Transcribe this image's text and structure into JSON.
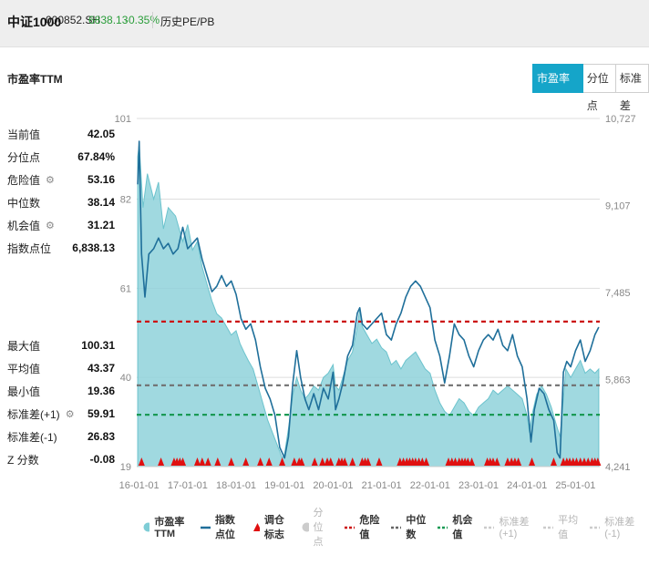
{
  "header": {
    "name": "中证1000",
    "code": "000852.SH",
    "price": "6838.13",
    "change": "-0.35%",
    "tab": "历史PE/PB"
  },
  "chart_title": "市盈率TTM",
  "buttons": [
    "市盈率TTM",
    "分位点",
    "标准差"
  ],
  "stats_top": [
    {
      "label": "当前值",
      "value": "42.05",
      "gear": false
    },
    {
      "label": "分位点",
      "value": "67.84%",
      "gear": false
    },
    {
      "label": "危险值",
      "value": "53.16",
      "gear": true
    },
    {
      "label": "中位数",
      "value": "38.14",
      "gear": false
    },
    {
      "label": "机会值",
      "value": "31.21",
      "gear": true
    },
    {
      "label": "指数点位",
      "value": "6,838.13",
      "gear": false
    }
  ],
  "stats_bottom": [
    {
      "label": "最大值",
      "value": "100.31",
      "gear": false
    },
    {
      "label": "平均值",
      "value": "43.37",
      "gear": false
    },
    {
      "label": "最小值",
      "value": "19.36",
      "gear": false
    },
    {
      "label": "标准差(+1)",
      "value": "59.91",
      "gear": true
    },
    {
      "label": "标准差(-1)",
      "value": "26.83",
      "gear": false
    },
    {
      "label": "Z 分数",
      "value": "-0.08",
      "gear": false
    }
  ],
  "legend": [
    {
      "label": "市盈率TTM",
      "kind": "dot",
      "color": "#7fcdd6",
      "active": true
    },
    {
      "label": "指数点位",
      "kind": "line",
      "color": "#1f6f9a",
      "active": true
    },
    {
      "label": "调仓标志",
      "kind": "triangle",
      "color": "#e01010",
      "active": true
    },
    {
      "label": "分位点",
      "kind": "dot",
      "color": "#cccccc",
      "active": false
    },
    {
      "label": "危险值",
      "kind": "dash",
      "color": "#cc1111",
      "active": true
    },
    {
      "label": "中位数",
      "kind": "dash",
      "color": "#666666",
      "active": true
    },
    {
      "label": "机会值",
      "kind": "dash",
      "color": "#1a9a55",
      "active": true
    },
    {
      "label": "标准差(+1)",
      "kind": "dash",
      "color": "#cccccc",
      "active": false
    },
    {
      "label": "平均值",
      "kind": "dash",
      "color": "#cccccc",
      "active": false
    },
    {
      "label": "标准差(-1)",
      "kind": "dash",
      "color": "#cccccc",
      "active": false
    }
  ],
  "colors": {
    "pe_fill": "#8fd2da",
    "pe_stroke": "#6cc3cd",
    "index_line": "#1f6f9a",
    "danger": "#cc1111",
    "median": "#707070",
    "opportunity": "#1a9a55",
    "marker": "#e01010",
    "accent": "#15a5c9"
  },
  "chart_data": {
    "type": "area",
    "title": "市盈率TTM",
    "x_ticks": [
      "16-01-01",
      "17-01-01",
      "18-01-01",
      "19-01-01",
      "20-01-01",
      "21-01-01",
      "22-01-01",
      "23-01-01",
      "24-01-01",
      "25-01-01"
    ],
    "y_left": {
      "ticks": [
        19,
        40,
        61,
        82,
        101
      ],
      "range": [
        19,
        101
      ]
    },
    "y_right": {
      "ticks": [
        "4,241",
        "5,863",
        "7,485",
        "9,107",
        "10,727"
      ],
      "range": [
        4241,
        10727
      ]
    },
    "reference_lines": [
      {
        "name": "危险值",
        "value": 53.16
      },
      {
        "name": "中位数",
        "value": 38.14
      },
      {
        "name": "机会值",
        "value": 31.21
      }
    ],
    "series": [
      {
        "name": "市盈率TTM",
        "axis": "left",
        "points": [
          [
            2015.97,
            92
          ],
          [
            2016.0,
            95
          ],
          [
            2016.08,
            80
          ],
          [
            2016.17,
            88
          ],
          [
            2016.3,
            82
          ],
          [
            2016.4,
            86
          ],
          [
            2016.5,
            75
          ],
          [
            2016.6,
            80
          ],
          [
            2016.75,
            78
          ],
          [
            2016.9,
            72
          ],
          [
            2017.0,
            76
          ],
          [
            2017.1,
            70
          ],
          [
            2017.2,
            72
          ],
          [
            2017.3,
            66
          ],
          [
            2017.4,
            62
          ],
          [
            2017.5,
            58
          ],
          [
            2017.6,
            55
          ],
          [
            2017.7,
            54
          ],
          [
            2017.8,
            52
          ],
          [
            2017.9,
            50
          ],
          [
            2018.0,
            51
          ],
          [
            2018.08,
            48
          ],
          [
            2018.16,
            46
          ],
          [
            2018.25,
            44
          ],
          [
            2018.35,
            42
          ],
          [
            2018.45,
            38
          ],
          [
            2018.55,
            34
          ],
          [
            2018.65,
            30
          ],
          [
            2018.75,
            27
          ],
          [
            2018.85,
            24
          ],
          [
            2018.95,
            21
          ],
          [
            2019.0,
            22
          ],
          [
            2019.08,
            28
          ],
          [
            2019.17,
            36
          ],
          [
            2019.25,
            40
          ],
          [
            2019.33,
            37
          ],
          [
            2019.42,
            35
          ],
          [
            2019.5,
            36
          ],
          [
            2019.6,
            38
          ],
          [
            2019.7,
            37
          ],
          [
            2019.8,
            40
          ],
          [
            2019.9,
            41
          ],
          [
            2020.0,
            43
          ],
          [
            2020.05,
            38
          ],
          [
            2020.12,
            37
          ],
          [
            2020.2,
            40
          ],
          [
            2020.3,
            44
          ],
          [
            2020.4,
            46
          ],
          [
            2020.5,
            52
          ],
          [
            2020.55,
            56
          ],
          [
            2020.6,
            52
          ],
          [
            2020.7,
            50
          ],
          [
            2020.8,
            48
          ],
          [
            2020.9,
            49
          ],
          [
            2021.0,
            47
          ],
          [
            2021.1,
            46
          ],
          [
            2021.2,
            43
          ],
          [
            2021.3,
            44
          ],
          [
            2021.4,
            42
          ],
          [
            2021.5,
            44
          ],
          [
            2021.6,
            45
          ],
          [
            2021.7,
            46
          ],
          [
            2021.8,
            44
          ],
          [
            2021.9,
            42
          ],
          [
            2022.0,
            41
          ],
          [
            2022.1,
            37
          ],
          [
            2022.2,
            34
          ],
          [
            2022.3,
            32
          ],
          [
            2022.4,
            31
          ],
          [
            2022.5,
            33
          ],
          [
            2022.6,
            35
          ],
          [
            2022.7,
            34
          ],
          [
            2022.8,
            32
          ],
          [
            2022.9,
            31
          ],
          [
            2023.0,
            33
          ],
          [
            2023.1,
            34
          ],
          [
            2023.2,
            35
          ],
          [
            2023.3,
            37
          ],
          [
            2023.4,
            36
          ],
          [
            2023.5,
            37
          ],
          [
            2023.6,
            38
          ],
          [
            2023.7,
            37
          ],
          [
            2023.8,
            36
          ],
          [
            2023.9,
            35
          ],
          [
            2024.0,
            31
          ],
          [
            2024.05,
            27
          ],
          [
            2024.1,
            31
          ],
          [
            2024.2,
            36
          ],
          [
            2024.3,
            38
          ],
          [
            2024.4,
            36
          ],
          [
            2024.5,
            33
          ],
          [
            2024.6,
            29
          ],
          [
            2024.68,
            26
          ],
          [
            2024.75,
            35
          ],
          [
            2024.8,
            42
          ],
          [
            2024.9,
            40
          ],
          [
            2025.0,
            42
          ],
          [
            2025.1,
            44
          ],
          [
            2025.2,
            41
          ],
          [
            2025.3,
            42
          ],
          [
            2025.4,
            41
          ],
          [
            2025.48,
            42
          ]
        ]
      },
      {
        "name": "指数点位",
        "axis": "right",
        "points": [
          [
            2015.97,
            9500
          ],
          [
            2016.0,
            10300
          ],
          [
            2016.05,
            8200
          ],
          [
            2016.12,
            7400
          ],
          [
            2016.2,
            8200
          ],
          [
            2016.3,
            8300
          ],
          [
            2016.4,
            8500
          ],
          [
            2016.5,
            8300
          ],
          [
            2016.6,
            8400
          ],
          [
            2016.7,
            8200
          ],
          [
            2016.8,
            8300
          ],
          [
            2016.9,
            8700
          ],
          [
            2017.0,
            8300
          ],
          [
            2017.1,
            8400
          ],
          [
            2017.2,
            8500
          ],
          [
            2017.3,
            8100
          ],
          [
            2017.4,
            7800
          ],
          [
            2017.5,
            7500
          ],
          [
            2017.6,
            7600
          ],
          [
            2017.7,
            7800
          ],
          [
            2017.8,
            7600
          ],
          [
            2017.9,
            7700
          ],
          [
            2018.0,
            7450
          ],
          [
            2018.1,
            7000
          ],
          [
            2018.2,
            6800
          ],
          [
            2018.3,
            6900
          ],
          [
            2018.4,
            6600
          ],
          [
            2018.5,
            6100
          ],
          [
            2018.6,
            5700
          ],
          [
            2018.7,
            5500
          ],
          [
            2018.8,
            5200
          ],
          [
            2018.9,
            4600
          ],
          [
            2019.0,
            4400
          ],
          [
            2019.08,
            4800
          ],
          [
            2019.17,
            5800
          ],
          [
            2019.25,
            6400
          ],
          [
            2019.33,
            5900
          ],
          [
            2019.42,
            5500
          ],
          [
            2019.5,
            5300
          ],
          [
            2019.6,
            5600
          ],
          [
            2019.7,
            5300
          ],
          [
            2019.8,
            5700
          ],
          [
            2019.9,
            5500
          ],
          [
            2020.0,
            6000
          ],
          [
            2020.05,
            5300
          ],
          [
            2020.12,
            5500
          ],
          [
            2020.2,
            5800
          ],
          [
            2020.3,
            6300
          ],
          [
            2020.4,
            6500
          ],
          [
            2020.5,
            7100
          ],
          [
            2020.55,
            7200
          ],
          [
            2020.6,
            6900
          ],
          [
            2020.7,
            6800
          ],
          [
            2020.8,
            6900
          ],
          [
            2020.9,
            7000
          ],
          [
            2021.0,
            7100
          ],
          [
            2021.1,
            6700
          ],
          [
            2021.2,
            6600
          ],
          [
            2021.3,
            6900
          ],
          [
            2021.4,
            7100
          ],
          [
            2021.5,
            7400
          ],
          [
            2021.6,
            7600
          ],
          [
            2021.7,
            7700
          ],
          [
            2021.8,
            7600
          ],
          [
            2021.9,
            7400
          ],
          [
            2022.0,
            7200
          ],
          [
            2022.1,
            6600
          ],
          [
            2022.2,
            6300
          ],
          [
            2022.3,
            5800
          ],
          [
            2022.4,
            6300
          ],
          [
            2022.5,
            6900
          ],
          [
            2022.6,
            6700
          ],
          [
            2022.7,
            6600
          ],
          [
            2022.8,
            6300
          ],
          [
            2022.9,
            6100
          ],
          [
            2023.0,
            6400
          ],
          [
            2023.1,
            6600
          ],
          [
            2023.2,
            6700
          ],
          [
            2023.3,
            6600
          ],
          [
            2023.4,
            6800
          ],
          [
            2023.5,
            6500
          ],
          [
            2023.6,
            6400
          ],
          [
            2023.7,
            6700
          ],
          [
            2023.8,
            6300
          ],
          [
            2023.9,
            6100
          ],
          [
            2024.0,
            5500
          ],
          [
            2024.08,
            4700
          ],
          [
            2024.15,
            5300
          ],
          [
            2024.25,
            5700
          ],
          [
            2024.35,
            5600
          ],
          [
            2024.45,
            5300
          ],
          [
            2024.55,
            5100
          ],
          [
            2024.62,
            4500
          ],
          [
            2024.68,
            4400
          ],
          [
            2024.75,
            6000
          ],
          [
            2024.82,
            6200
          ],
          [
            2024.9,
            6100
          ],
          [
            2025.0,
            6400
          ],
          [
            2025.1,
            6600
          ],
          [
            2025.2,
            6200
          ],
          [
            2025.3,
            6400
          ],
          [
            2025.4,
            6700
          ],
          [
            2025.48,
            6838
          ]
        ]
      }
    ],
    "markers_x": [
      2016.05,
      2016.45,
      2016.72,
      2016.78,
      2016.84,
      2016.9,
      2017.2,
      2017.3,
      2017.42,
      2017.62,
      2017.9,
      2018.2,
      2018.5,
      2018.68,
      2018.95,
      2019.2,
      2019.3,
      2019.35,
      2019.62,
      2019.78,
      2019.88,
      2019.95,
      2020.12,
      2020.18,
      2020.24,
      2020.4,
      2020.6,
      2020.66,
      2020.72,
      2020.95,
      2021.38,
      2021.45,
      2021.52,
      2021.58,
      2021.64,
      2021.7,
      2021.77,
      2021.84,
      2021.92,
      2022.38,
      2022.45,
      2022.52,
      2022.6,
      2022.66,
      2022.72,
      2022.78,
      2022.86,
      2023.18,
      2023.24,
      2023.3,
      2023.38,
      2023.6,
      2023.68,
      2023.75,
      2023.82,
      2024.1,
      2024.55,
      2024.75,
      2024.82,
      2024.88,
      2024.95,
      2025.02,
      2025.1,
      2025.18,
      2025.26,
      2025.34,
      2025.4,
      2025.46
    ]
  }
}
